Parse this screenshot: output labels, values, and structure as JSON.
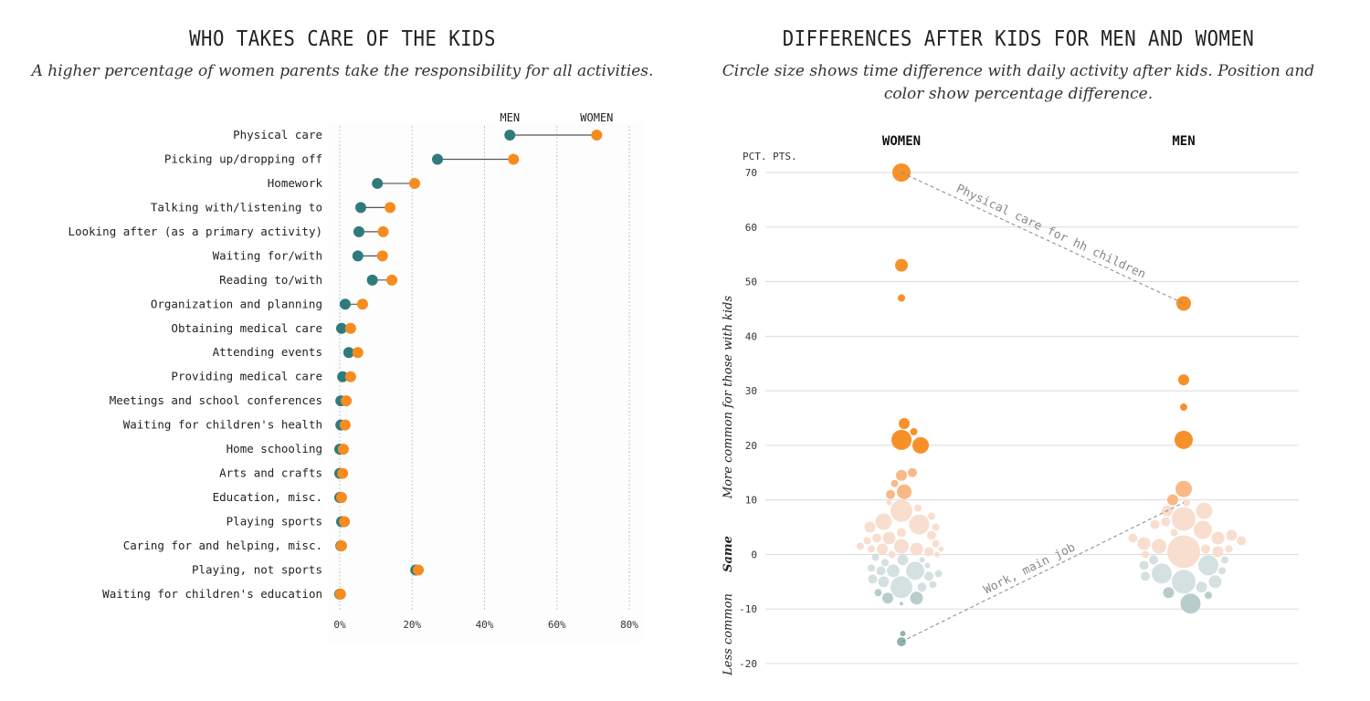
{
  "left": {
    "title": "WHO TAKES CARE OF THE KIDS",
    "subtitle": "A higher percentage of women parents take the responsibility for all activities."
  },
  "right": {
    "title": "DIFFERENCES AFTER KIDS FOR MEN AND WOMEN",
    "subtitle_line1": "Circle size shows time difference with daily activity after kids. Position and",
    "subtitle_line2": "color show percentage difference."
  },
  "colors": {
    "men": "#2f7b7b",
    "women": "#f68b1f",
    "strong": "#f68b1f",
    "mid": "#f9b47e",
    "pale": "#f8dccb",
    "neg": "#d3dfde",
    "negdark": "#b4cac8",
    "negdarkest": "#8aaeac"
  },
  "chart_data": [
    {
      "type": "dumbbell",
      "title": "WHO TAKES CARE OF THE KIDS",
      "legend": [
        "MEN",
        "WOMEN"
      ],
      "xlim": [
        0,
        80
      ],
      "xticks": [
        "0%",
        "20%",
        "40%",
        "60%",
        "80%"
      ],
      "xtick_values": [
        0,
        20,
        40,
        60,
        80
      ],
      "categories": [
        "Physical care",
        "Picking up/dropping off",
        "Homework",
        "Talking with/listening to",
        "Looking after (as a primary activity)",
        "Waiting for/with",
        "Reading to/with",
        "Organization and planning",
        "Obtaining medical care",
        "Attending events",
        "Providing medical care",
        "Meetings and school conferences",
        "Waiting for children's health",
        "Home schooling",
        "Arts and crafts",
        "Education, misc.",
        "Playing sports",
        "Caring for and helping, misc.",
        "Playing, not sports",
        "Waiting for children's education"
      ],
      "series": [
        {
          "name": "MEN",
          "values": [
            47,
            27,
            10.4,
            5.8,
            5.3,
            5,
            9,
            1.5,
            0.5,
            2.5,
            0.8,
            0.3,
            0.3,
            0,
            0,
            0,
            0.5,
            0.3,
            21,
            0
          ]
        },
        {
          "name": "WOMEN",
          "values": [
            71,
            48,
            20.7,
            13.9,
            12,
            11.8,
            14.4,
            6.3,
            3,
            5,
            3,
            1.8,
            1.5,
            1,
            0.8,
            0.5,
            1.3,
            0.5,
            21.7,
            0.2
          ]
        }
      ]
    },
    {
      "type": "scatter",
      "title": "DIFFERENCES AFTER KIDS FOR MEN AND WOMEN",
      "ylabel_unit": "PCT. PTS.",
      "ylim": [
        -20,
        70
      ],
      "yticks": [
        "70",
        "60",
        "50",
        "40",
        "30",
        "20",
        "10",
        "0",
        "-10",
        "-20"
      ],
      "ytick_values": [
        70,
        60,
        50,
        40,
        30,
        20,
        10,
        0,
        -10,
        -20
      ],
      "axis_label_more": "More common for those with kids",
      "axis_label_same": "Same",
      "axis_label_less": "Less common",
      "groups": [
        {
          "name": "WOMEN",
          "bubbles": [
            [
              70,
              10
            ],
            [
              53,
              7
            ],
            [
              47,
              4
            ],
            [
              24,
              6
            ],
            [
              22.5,
              4
            ],
            [
              21,
              11
            ],
            [
              20,
              9
            ],
            [
              15,
              5
            ],
            [
              14.5,
              6
            ],
            [
              13,
              4
            ],
            [
              11.5,
              8
            ],
            [
              11,
              5
            ],
            [
              8,
              12
            ],
            [
              9.5,
              3
            ],
            [
              8.5,
              4
            ],
            [
              7,
              4
            ],
            [
              6,
              9
            ],
            [
              5.5,
              11
            ],
            [
              5,
              6
            ],
            [
              5,
              4
            ],
            [
              4,
              5
            ],
            [
              3.5,
              5
            ],
            [
              3,
              7
            ],
            [
              3,
              5
            ],
            [
              2.5,
              4
            ],
            [
              2,
              4
            ],
            [
              1.5,
              8
            ],
            [
              1.5,
              4
            ],
            [
              1,
              7
            ],
            [
              1,
              6
            ],
            [
              1,
              4
            ],
            [
              1,
              3
            ],
            [
              0.5,
              5
            ],
            [
              0,
              4
            ],
            [
              0,
              3
            ],
            [
              -0.5,
              4
            ],
            [
              -1,
              3
            ],
            [
              -1,
              6
            ],
            [
              -1.5,
              4
            ],
            [
              -2,
              3
            ],
            [
              -2.5,
              4
            ],
            [
              -3,
              10
            ],
            [
              -3,
              7
            ],
            [
              -3,
              5
            ],
            [
              -3.5,
              4
            ],
            [
              -4,
              5
            ],
            [
              -4.5,
              5
            ],
            [
              -5,
              6
            ],
            [
              -5.5,
              4
            ],
            [
              -6,
              12
            ],
            [
              -6,
              5
            ],
            [
              -7,
              4
            ],
            [
              -8,
              7
            ],
            [
              -8,
              6
            ],
            [
              -9,
              2
            ],
            [
              -14.5,
              3
            ],
            [
              -16,
              5
            ]
          ]
        },
        {
          "name": "MEN",
          "bubbles": [
            [
              46,
              8
            ],
            [
              32,
              6
            ],
            [
              27,
              4
            ],
            [
              21,
              10
            ],
            [
              12,
              9
            ],
            [
              10,
              6
            ],
            [
              9.5,
              4
            ],
            [
              8,
              9
            ],
            [
              8,
              6
            ],
            [
              6.5,
              13
            ],
            [
              6,
              5
            ],
            [
              5.5,
              5
            ],
            [
              4.5,
              10
            ],
            [
              4,
              4
            ],
            [
              3.5,
              6
            ],
            [
              3,
              7
            ],
            [
              3,
              5
            ],
            [
              2.5,
              5
            ],
            [
              2,
              7
            ],
            [
              1.5,
              8
            ],
            [
              1,
              5
            ],
            [
              1,
              4
            ],
            [
              0.5,
              18
            ],
            [
              0.5,
              6
            ],
            [
              0,
              4
            ],
            [
              -1,
              4
            ],
            [
              -1,
              5
            ],
            [
              -2,
              11
            ],
            [
              -2,
              5
            ],
            [
              -3,
              4
            ],
            [
              -3.5,
              11
            ],
            [
              -4,
              5
            ],
            [
              -5,
              13
            ],
            [
              -5,
              7
            ],
            [
              -6,
              6
            ],
            [
              -7,
              6
            ],
            [
              -7.5,
              4
            ],
            [
              -9,
              11
            ]
          ]
        }
      ],
      "annotations": [
        {
          "text": "Physical care for hh children",
          "women": 70,
          "men": 46
        },
        {
          "text": "Work, main job",
          "women": -16,
          "men": 9.5
        }
      ]
    }
  ]
}
